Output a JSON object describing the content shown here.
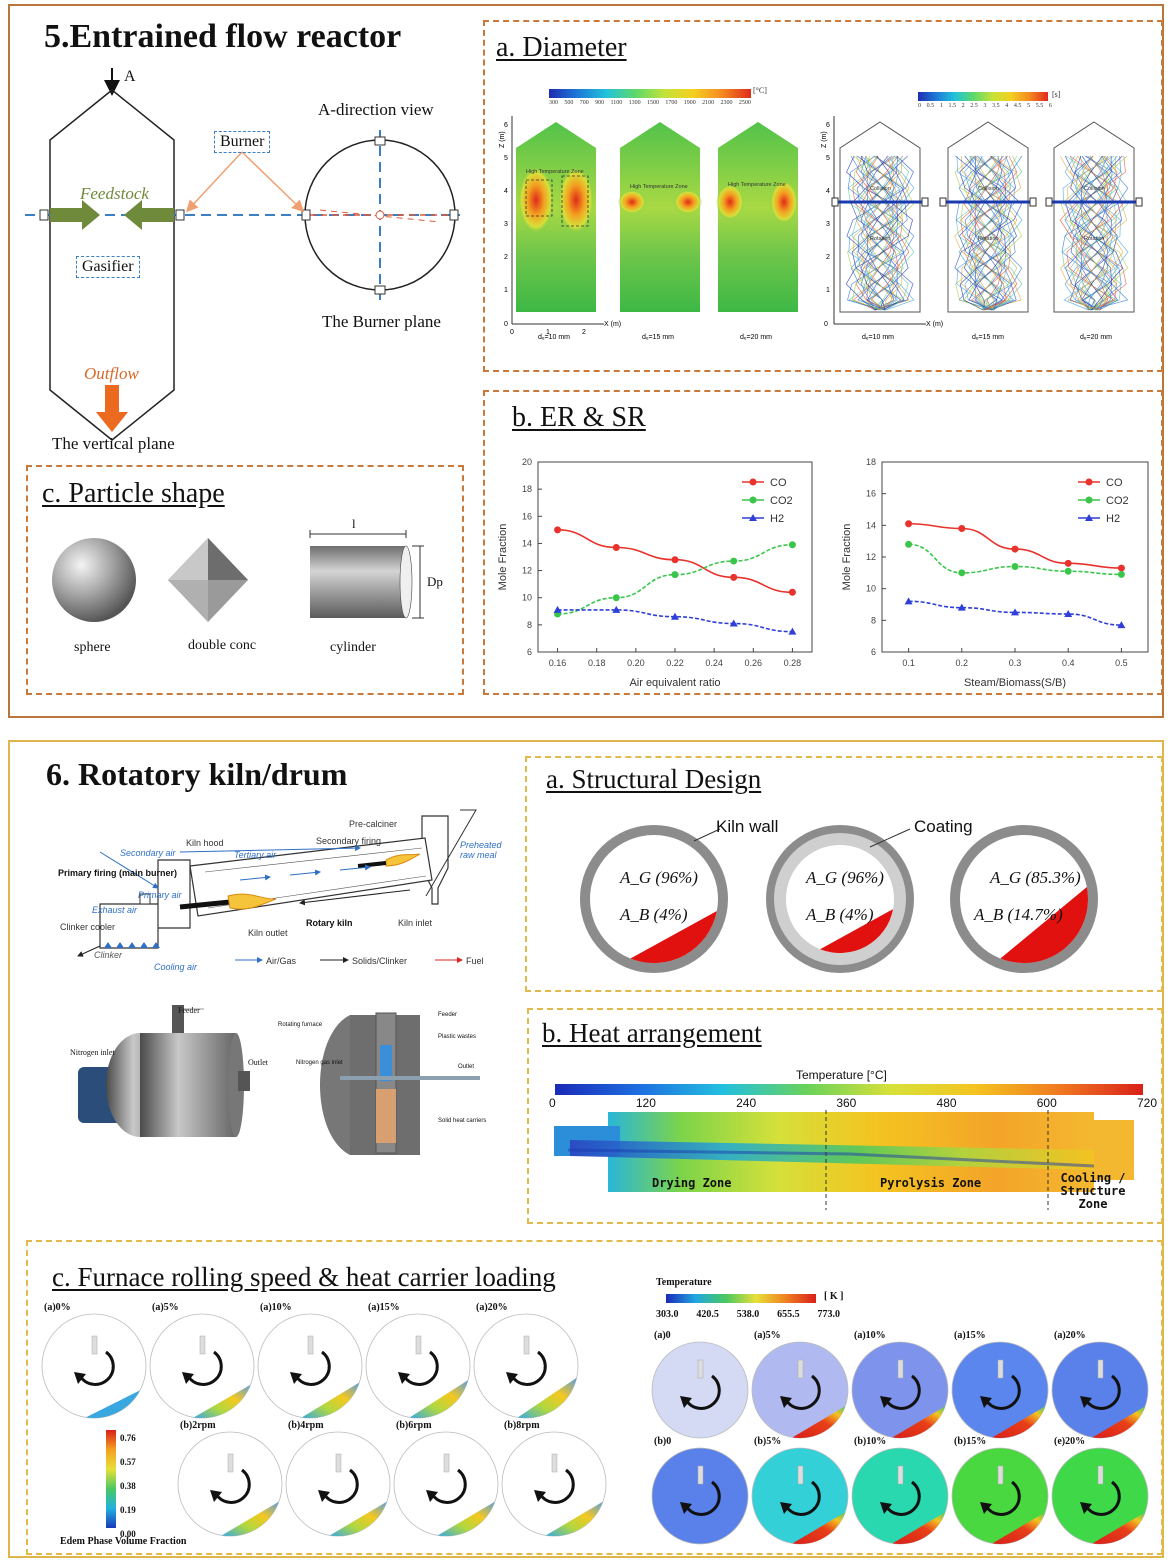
{
  "section5": {
    "title": "5.Entrained flow reactor",
    "gasifier_diagram": {
      "arrow_label": "A",
      "direction_view": "A-direction view",
      "burner": "Burner",
      "feedstock": "Feedstock",
      "gasifier": "Gasifier",
      "outflow": "Outflow",
      "burner_plane": "The Burner plane",
      "vertical_plane": "The vertical plane"
    },
    "diameter": {
      "title": "a. Diameter",
      "temp_scale_ticks": [
        "300",
        "500",
        "700",
        "900",
        "1100",
        "1300",
        "1500",
        "1700",
        "1900",
        "2100",
        "2300",
        "2500"
      ],
      "temp_unit": "[°C]",
      "time_scale_ticks": [
        "0",
        "0.5",
        "1",
        "1.5",
        "2",
        "2.5",
        "3",
        "3.5",
        "4",
        "4.5",
        "5",
        "5.5",
        "6"
      ],
      "time_unit": "[s]",
      "z_axis": "Z (m)",
      "x_axis": "X (m)",
      "z_ticks": [
        "0",
        "1",
        "2",
        "3",
        "4",
        "5",
        "6"
      ],
      "x_ticks": [
        "0",
        "1",
        "2"
      ],
      "hot_zone": "High Temperature Zone",
      "cases": [
        "dₑ=10 mm",
        "dₑ=15 mm",
        "dₑ=20 mm"
      ],
      "flow_labels": [
        "Collision",
        "Rotation"
      ]
    },
    "er_sr": {
      "title": "b. ER & SR"
    },
    "shape": {
      "title": "c. Particle shape",
      "shapes": [
        "sphere",
        "double conc",
        "cylinder"
      ],
      "dim_l": "l",
      "dim_dp": "Dp"
    }
  },
  "chart_data": [
    {
      "type": "line",
      "xlabel": "Air equivalent ratio",
      "ylabel": "Mole Fraction",
      "x": [
        0.16,
        0.19,
        0.22,
        0.25,
        0.28
      ],
      "x_ticks": [
        "0.16",
        "0.18",
        "0.20",
        "0.22",
        "0.24",
        "0.26",
        "0.28"
      ],
      "y_ticks": [
        "6",
        "8",
        "10",
        "12",
        "14",
        "16",
        "18",
        "20"
      ],
      "xlim": [
        0.15,
        0.29
      ],
      "ylim": [
        6,
        20
      ],
      "legend_position": "top-right",
      "series": [
        {
          "name": "CO",
          "color": "#e8322b",
          "marker": "circle",
          "values": [
            15.0,
            13.7,
            12.8,
            11.5,
            10.4
          ]
        },
        {
          "name": "CO2",
          "color": "#39c64a",
          "marker": "circle",
          "values": [
            8.8,
            10.0,
            11.7,
            12.7,
            13.9
          ]
        },
        {
          "name": "H2",
          "color": "#2f3fd8",
          "marker": "triangle",
          "values": [
            9.1,
            9.1,
            8.6,
            8.1,
            7.5
          ]
        }
      ]
    },
    {
      "type": "line",
      "xlabel": "Steam/Biomass(S/B)",
      "ylabel": "Mole Fraction",
      "x": [
        0.1,
        0.2,
        0.3,
        0.4,
        0.5
      ],
      "x_ticks": [
        "0.1",
        "0.2",
        "0.3",
        "0.4",
        "0.5"
      ],
      "y_ticks": [
        "6",
        "8",
        "10",
        "12",
        "14",
        "16",
        "18"
      ],
      "xlim": [
        0.05,
        0.55
      ],
      "ylim": [
        6,
        18
      ],
      "legend_position": "top-right",
      "series": [
        {
          "name": "CO",
          "color": "#e8322b",
          "marker": "circle",
          "values": [
            14.1,
            13.8,
            12.5,
            11.6,
            11.3
          ]
        },
        {
          "name": "CO2",
          "color": "#39c64a",
          "marker": "circle",
          "values": [
            12.8,
            11.0,
            11.4,
            11.1,
            10.9
          ]
        },
        {
          "name": "H2",
          "color": "#2f3fd8",
          "marker": "triangle",
          "values": [
            9.2,
            8.8,
            8.5,
            8.4,
            7.7
          ]
        }
      ]
    }
  ],
  "section6": {
    "title": "6. Rotatory kiln/drum",
    "kiln": {
      "precalciner": "Pre-calciner",
      "preheated": "Preheated raw meal",
      "secondary_firing": "Secondary firing",
      "kiln_hood": "Kiln hood",
      "secondary_air": "Secondary air",
      "tertiary_air": "Tertiary air",
      "primary_firing": "Primary firing (main burner)",
      "primary_air": "Primary air",
      "exhaust_air": "Exhaust air",
      "clinker_cooler": "Clinker cooler",
      "kiln_outlet": "Kiln outlet",
      "rotary_kiln": "Rotary kiln",
      "kiln_inlet": "Kiln inlet",
      "clinker": "Clinker",
      "cooling_air": "Cooling air",
      "legend_air": "Air/Gas",
      "legend_solids": "Solids/Clinker",
      "legend_fuel": "Fuel"
    },
    "drum": {
      "feeder": "Feeder",
      "nitrogen_inlet": "Nitrogen inlet",
      "outlet": "Outlet",
      "rotating_furnace": "Rotating furnace",
      "plastic_wastes": "Plastic wastes",
      "nitrogen_gas_inlet": "Nitrogen gas inlet",
      "solid_heat_carriers": "Solid heat carriers"
    },
    "structural": {
      "title": "a. Structural Design",
      "kiln_wall": "Kiln wall",
      "coating": "Coating",
      "rings": [
        {
          "ag": "A_G (96%)",
          "ab": "A_B (4%)",
          "fraction_b": 0.04
        },
        {
          "ag": "A_G (96%)",
          "ab": "A_B (4%)",
          "fraction_b": 0.04
        },
        {
          "ag": "A_G (85.3%)",
          "ab": "A_B (14.7%)",
          "fraction_b": 0.147
        }
      ]
    },
    "heat": {
      "title": "b. Heat arrangement",
      "scale_label": "Temperature [°C]",
      "ticks": [
        "0",
        "120",
        "240",
        "360",
        "480",
        "600",
        "720"
      ],
      "zones": [
        "Drying Zone",
        "Pyrolysis Zone",
        "Cooling / Structure Zone"
      ]
    },
    "furnace": {
      "title": "c. Furnace rolling speed & heat carrier loading",
      "left_row1": [
        "(a)0%",
        "(a)5%",
        "(a)10%",
        "(a)15%",
        "(a)20%"
      ],
      "left_row2": [
        "(b)2rpm",
        "(b)4rpm",
        "(b)6rpm",
        "(b)8rpm"
      ],
      "left_cb_ticks": [
        "0.76",
        "0.57",
        "0.38",
        "0.19",
        "0.00"
      ],
      "left_cb_label": "Edem Phase Volume Fraction",
      "right_title": "Temperature",
      "right_unit": "[ K ]",
      "right_ticks": [
        "303.0",
        "420.5",
        "538.0",
        "655.5",
        "773.0"
      ],
      "right_row1": [
        "(a)0",
        "(a)5%",
        "(a)10%",
        "(a)15%",
        "(a)20%"
      ],
      "right_row2": [
        "(b)0",
        "(b)5%",
        "(b)10%",
        "(b)15%",
        "(e)20%"
      ]
    }
  }
}
